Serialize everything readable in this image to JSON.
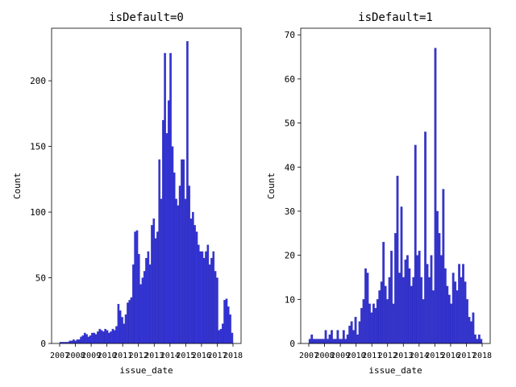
{
  "chart_data": [
    {
      "type": "bar",
      "title": "isDefault=0",
      "xlabel": "issue_date",
      "ylabel": "Count",
      "ylim": [
        0,
        240
      ],
      "yticks": [
        0,
        50,
        100,
        150,
        200
      ],
      "color": "#0000cc",
      "x_tick_labels": [
        "2007",
        "2008",
        "2009",
        "2010",
        "2011",
        "2012",
        "2013",
        "2014",
        "2015",
        "2016",
        "2017",
        "2018"
      ],
      "values": [
        1,
        1,
        1,
        1,
        1,
        2,
        2,
        3,
        2,
        3,
        3,
        5,
        6,
        8,
        7,
        5,
        6,
        8,
        8,
        7,
        9,
        11,
        10,
        9,
        11,
        10,
        8,
        9,
        11,
        10,
        13,
        30,
        25,
        20,
        15,
        22,
        31,
        33,
        35,
        60,
        85,
        86,
        68,
        45,
        50,
        55,
        65,
        70,
        60,
        90,
        95,
        80,
        85,
        140,
        110,
        170,
        221,
        160,
        185,
        221,
        150,
        130,
        110,
        105,
        120,
        140,
        140,
        110,
        230,
        120,
        95,
        100,
        90,
        85,
        75,
        70,
        70,
        65,
        70,
        75,
        60,
        65,
        70,
        55,
        50,
        10,
        11,
        15,
        33,
        34,
        28,
        22,
        8
      ]
    },
    {
      "type": "bar",
      "title": "isDefault=1",
      "xlabel": "issue_date",
      "ylabel": "Count",
      "ylim": [
        0,
        71.5
      ],
      "yticks": [
        0,
        10,
        20,
        30,
        40,
        50,
        60,
        70
      ],
      "color": "#0000cc",
      "x_tick_labels": [
        "2007",
        "2008",
        "2009",
        "2010",
        "2011",
        "2012",
        "2013",
        "2014",
        "2015",
        "2016",
        "2017",
        "2018"
      ],
      "values": [
        1,
        2,
        1,
        1,
        1,
        1,
        1,
        1,
        3,
        1,
        2,
        3,
        1,
        1,
        3,
        1,
        1,
        3,
        1,
        2,
        4,
        5,
        3,
        6,
        2,
        5,
        8,
        10,
        17,
        16,
        9,
        7,
        9,
        8,
        10,
        12,
        14,
        23,
        13,
        10,
        15,
        21,
        9,
        25,
        38,
        16,
        31,
        15,
        19,
        20,
        17,
        13,
        15,
        45,
        20,
        21,
        15,
        10,
        48,
        18,
        15,
        20,
        12,
        67,
        30,
        25,
        20,
        35,
        17,
        13,
        11,
        9,
        16,
        14,
        12,
        18,
        15,
        18,
        14,
        10,
        6,
        5,
        7,
        2,
        1,
        2,
        1
      ]
    }
  ]
}
